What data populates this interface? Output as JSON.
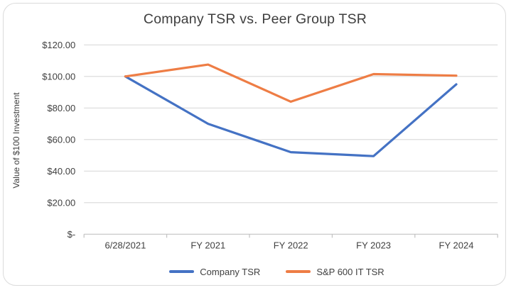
{
  "page": {
    "background": "#FFFFFF"
  },
  "card": {
    "background": "#FFFFFF",
    "border_color": "#DBDBDB"
  },
  "colors": {
    "title_text": "#3E3E3E",
    "axis_text": "#404040",
    "gridline": "#D9D9D9",
    "axis_line": "#C2C2C2"
  },
  "chart_data": {
    "type": "line",
    "title": "Company TSR vs. Peer Group TSR",
    "ylabel": "Value of $100 Investment",
    "xlabel": "",
    "categories": [
      "6/28/2021",
      "FY 2021",
      "FY 2022",
      "FY 2023",
      "FY 2024"
    ],
    "ylim": [
      0,
      120
    ],
    "grid": true,
    "legend_position": "bottom",
    "y_ticks": [
      {
        "value": 0,
        "label": "$-"
      },
      {
        "value": 20,
        "label": "$20.00"
      },
      {
        "value": 40,
        "label": "$40.00"
      },
      {
        "value": 60,
        "label": "$60.00"
      },
      {
        "value": 80,
        "label": "$80.00"
      },
      {
        "value": 100,
        "label": "$100.00"
      },
      {
        "value": 120,
        "label": "$120.00"
      }
    ],
    "series": [
      {
        "name": "Company TSR",
        "color": "#4472C4",
        "values": [
          100,
          70,
          52,
          49.5,
          95
        ]
      },
      {
        "name": "S&P 600 IT TSR",
        "color": "#EE7D45",
        "values": [
          100,
          107.5,
          84,
          101.5,
          100.5
        ]
      }
    ]
  }
}
